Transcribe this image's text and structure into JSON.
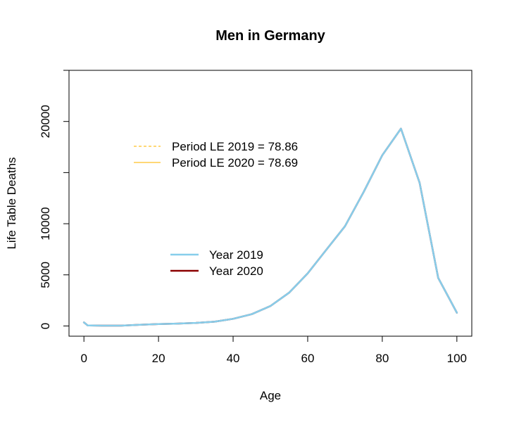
{
  "chart_data": {
    "type": "line",
    "title": "Men in Germany",
    "xlabel": "Age",
    "ylabel": "Life Table Deaths",
    "xlim": [
      -4,
      104
    ],
    "ylim": [
      -1000,
      25000
    ],
    "x_ticks": [
      0,
      20,
      40,
      60,
      80,
      100
    ],
    "y_ticks": [
      0,
      5000,
      10000,
      15000,
      20000,
      25000
    ],
    "y_tick_labels": [
      "0",
      "5000",
      "10000",
      "",
      "20000",
      ""
    ],
    "grid": false,
    "series": [
      {
        "name": "Year 2019",
        "color": "#87ceeb",
        "x": [
          0,
          1,
          5,
          10,
          15,
          20,
          25,
          30,
          35,
          40,
          45,
          50,
          55,
          60,
          65,
          70,
          75,
          80,
          85,
          90,
          95,
          100
        ],
        "values": [
          350,
          50,
          30,
          30,
          120,
          180,
          230,
          300,
          420,
          700,
          1150,
          1950,
          3250,
          5150,
          7450,
          9750,
          13100,
          16700,
          19300,
          14000,
          4700,
          1300
        ]
      },
      {
        "name": "Year 2020",
        "color": "#8b0000",
        "x": [
          0,
          1,
          5,
          10,
          15,
          20,
          25,
          30,
          35,
          40,
          45,
          50,
          55,
          60,
          65,
          70,
          75,
          80,
          85,
          90,
          95,
          100
        ],
        "values": [
          350,
          50,
          30,
          30,
          120,
          180,
          230,
          300,
          420,
          700,
          1150,
          1950,
          3250,
          5150,
          7450,
          9750,
          13100,
          16700,
          19300,
          14000,
          4700,
          1300
        ]
      }
    ],
    "legend_top": {
      "placement": "top-left",
      "entries": [
        {
          "label": "Period LE 2019 = 78.86",
          "color": "#ffc125",
          "dash": "dashed"
        },
        {
          "label": "Period LE 2020 = 78.69",
          "color": "#ffc125",
          "dash": "solid"
        }
      ]
    },
    "legend_mid": {
      "placement": "center-left",
      "entries": [
        {
          "label": "Year 2019",
          "color": "#87ceeb"
        },
        {
          "label": "Year 2020",
          "color": "#8b0000"
        }
      ]
    }
  }
}
